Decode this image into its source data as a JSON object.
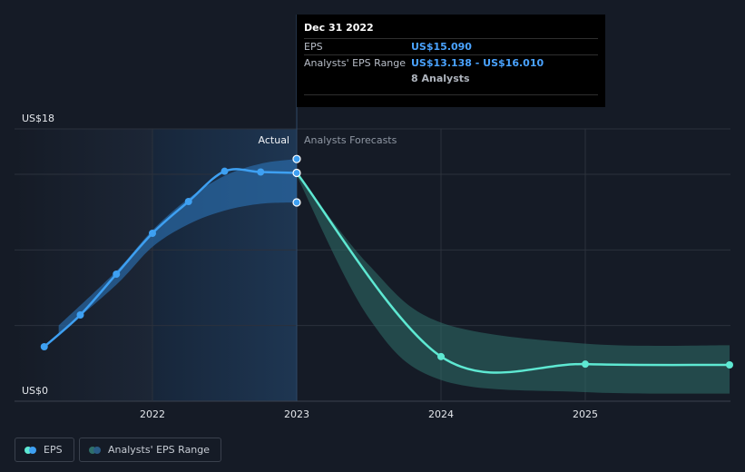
{
  "chart_data": {
    "type": "line",
    "y_axis": {
      "min_label": "US$0",
      "max_label": "US$18",
      "ylim": [
        0,
        18
      ]
    },
    "x_ticks": [
      "2022",
      "2023",
      "2024",
      "2025"
    ],
    "regions": {
      "actual_label": "Actual",
      "forecast_label": "Analysts Forecasts"
    },
    "series": [
      {
        "name": "EPS",
        "kind": "actual",
        "color": "#3ea0f2",
        "points": [
          {
            "x": 2021.25,
            "y": 3.6
          },
          {
            "x": 2021.5,
            "y": 5.7
          },
          {
            "x": 2021.75,
            "y": 8.4
          },
          {
            "x": 2022.0,
            "y": 11.1
          },
          {
            "x": 2022.25,
            "y": 13.2
          },
          {
            "x": 2022.5,
            "y": 15.2
          },
          {
            "x": 2022.75,
            "y": 15.15
          },
          {
            "x": 2023.0,
            "y": 15.09
          }
        ],
        "range_band": {
          "upper": [
            {
              "x": 2021.35,
              "y": 5.0
            },
            {
              "x": 2021.75,
              "y": 8.6
            },
            {
              "x": 2022.0,
              "y": 11.3
            },
            {
              "x": 2022.25,
              "y": 13.4
            },
            {
              "x": 2022.5,
              "y": 14.9
            },
            {
              "x": 2022.75,
              "y": 15.7
            },
            {
              "x": 2023.0,
              "y": 16.01
            }
          ],
          "lower": [
            {
              "x": 2021.35,
              "y": 4.4
            },
            {
              "x": 2021.75,
              "y": 7.7
            },
            {
              "x": 2022.0,
              "y": 10.2
            },
            {
              "x": 2022.25,
              "y": 11.7
            },
            {
              "x": 2022.5,
              "y": 12.6
            },
            {
              "x": 2022.75,
              "y": 13.05
            },
            {
              "x": 2023.0,
              "y": 13.138
            }
          ]
        }
      },
      {
        "name": "EPS",
        "kind": "forecast",
        "color": "#5ee8d2",
        "points": [
          {
            "x": 2023.0,
            "y": 15.09
          },
          {
            "x": 2024.0,
            "y": 2.95
          },
          {
            "x": 2025.0,
            "y": 2.45
          },
          {
            "x": 2026.0,
            "y": 2.4
          }
        ],
        "range_band": {
          "upper": [
            {
              "x": 2023.0,
              "y": 15.09
            },
            {
              "x": 2023.5,
              "y": 9.0
            },
            {
              "x": 2024.0,
              "y": 5.2
            },
            {
              "x": 2025.0,
              "y": 3.8
            },
            {
              "x": 2026.0,
              "y": 3.7
            }
          ],
          "lower": [
            {
              "x": 2023.0,
              "y": 14.9
            },
            {
              "x": 2023.5,
              "y": 5.5
            },
            {
              "x": 2024.0,
              "y": 1.4
            },
            {
              "x": 2025.0,
              "y": 0.6
            },
            {
              "x": 2026.0,
              "y": 0.5
            }
          ]
        }
      }
    ],
    "tooltip_markers": [
      {
        "x": 2023.0,
        "y": 16.01
      },
      {
        "x": 2023.0,
        "y": 15.09
      },
      {
        "x": 2023.0,
        "y": 13.138
      }
    ]
  },
  "tooltip": {
    "date": "Dec 31 2022",
    "eps_label": "EPS",
    "eps_value": "US$15.090",
    "range_label": "Analysts' EPS Range",
    "range_value": "US$13.138 - US$16.010",
    "analysts": "8 Analysts"
  },
  "legend": {
    "eps_label": "EPS",
    "range_label": "Analysts' EPS Range",
    "eps_colors": [
      "#5ee8d2",
      "#3ea0f2"
    ],
    "range_colors": [
      "#2f6f6a",
      "#2a5c86"
    ]
  },
  "colors": {
    "background": "#151b26",
    "actual_shade": "#1d3047",
    "gridline": "#2b313c"
  }
}
